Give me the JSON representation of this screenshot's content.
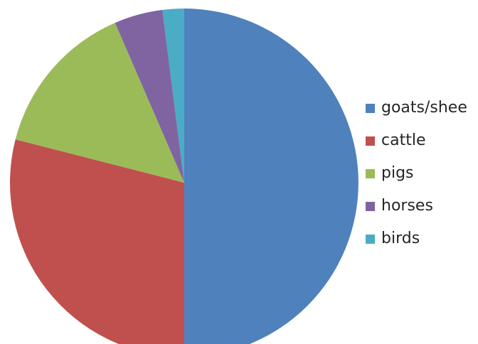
{
  "chart_data": {
    "type": "pie",
    "title": "",
    "categories": [
      "goats/sheep",
      "cattle",
      "pigs",
      "horses",
      "birds"
    ],
    "values": [
      50,
      29,
      14.5,
      4.5,
      2
    ],
    "colors": [
      "#4f81bd",
      "#c0504d",
      "#9bbb59",
      "#8064a2",
      "#4bacc6"
    ],
    "legend": {
      "position": "right",
      "labels": [
        "goats/shee",
        "cattle",
        "pigs",
        "horses",
        "birds"
      ]
    },
    "start_angle_deg": 0,
    "direction": "clockwise"
  }
}
